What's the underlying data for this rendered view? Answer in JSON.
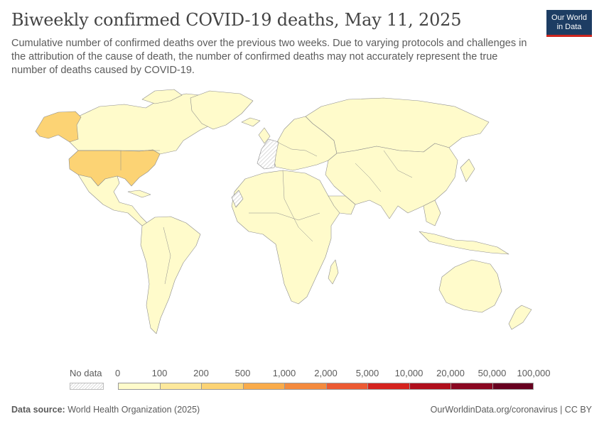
{
  "header": {
    "title": "Biweekly confirmed COVID-19 deaths, May 11, 2025",
    "subtitle": "Cumulative number of confirmed deaths over the previous two weeks. Due to varying protocols and challenges in the attribution of the cause of death, the number of confirmed deaths may not accurately represent the true number of deaths caused by COVID-19."
  },
  "logo": {
    "line1": "Our World",
    "line2": "in Data",
    "bg_color": "#1d3d63",
    "accent_color": "#ce261e"
  },
  "colors": {
    "bin_0_100": "#fffbcb",
    "bin_100_200": "#fde89b",
    "bin_200_500": "#fcd374",
    "bin_500_1000": "#f9ab4a",
    "bin_1000_2000": "#f48a3d",
    "bin_2000_5000": "#ec5a33",
    "bin_5000_10000": "#d5231e",
    "bin_10000_20000": "#b00f1c",
    "bin_20000_50000": "#8a0721",
    "bin_50000_100000": "#67001f",
    "no_data": "#e6e6e6",
    "ocean": "#ffffff"
  },
  "legend": {
    "no_data_label": "No data",
    "ticks": [
      "0",
      "100",
      "200",
      "500",
      "1,000",
      "2,000",
      "5,000",
      "10,000",
      "20,000",
      "50,000",
      "100,000"
    ],
    "bins": [
      {
        "from": 0,
        "to": 100,
        "color": "#fffbcb"
      },
      {
        "from": 100,
        "to": 200,
        "color": "#fde89b"
      },
      {
        "from": 200,
        "to": 500,
        "color": "#fcd374"
      },
      {
        "from": 500,
        "to": 1000,
        "color": "#f9ab4a"
      },
      {
        "from": 1000,
        "to": 2000,
        "color": "#f48a3d"
      },
      {
        "from": 2000,
        "to": 5000,
        "color": "#ec5a33"
      },
      {
        "from": 5000,
        "to": 10000,
        "color": "#d5231e"
      },
      {
        "from": 10000,
        "to": 20000,
        "color": "#b00f1c"
      },
      {
        "from": 20000,
        "to": 50000,
        "color": "#8a0721"
      },
      {
        "from": 50000,
        "to": 100000,
        "color": "#67001f"
      }
    ]
  },
  "map": {
    "highlighted_regions": [
      {
        "region": "United States",
        "bin": "200-500"
      },
      {
        "region": "Alaska",
        "bin": "200-500"
      }
    ],
    "default_bin": "0-100",
    "no_data_regions": [
      "Western Europe (hatched)",
      "Western Sahara"
    ]
  },
  "footer": {
    "source_label": "Data source:",
    "source_text": "World Health Organization (2025)",
    "credit": "OurWorldinData.org/coronavirus | CC BY"
  }
}
